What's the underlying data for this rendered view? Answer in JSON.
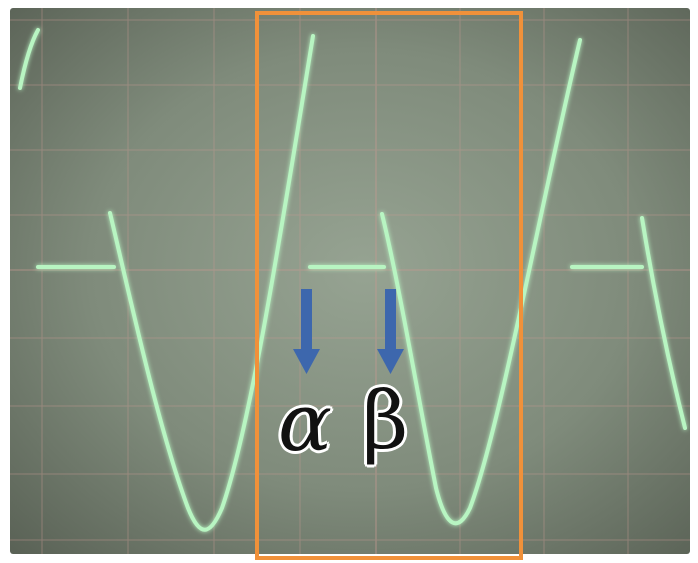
{
  "annotations": {
    "alpha_symbol": "α",
    "beta_symbol": "β"
  },
  "colors": {
    "trace": "#b8f5c2",
    "grid_line": "#c79a92",
    "highlight_box": "#f0913a",
    "arrow": "#3d67ad",
    "symbol": "#111111"
  }
}
